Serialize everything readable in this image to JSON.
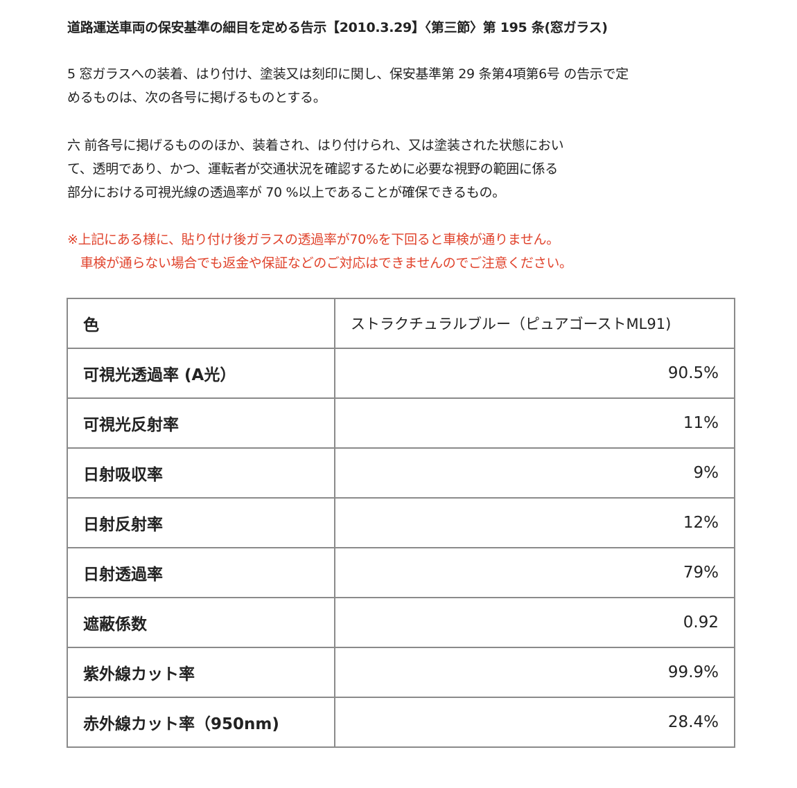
{
  "title": "道路運送車両の保安基準の細目を定める告示【2010.3.29】〈第三節〉第 195 条(窓ガラス)",
  "para1": [
    "5 窓ガラスへの装着、はり付け、塗装又は刻印に関し、保安基準第 29 条第4項第6号 の告示で定",
    "めるものは、次の各号に掲げるものとする。"
  ],
  "para2": [
    "六 前各号に掲げるもののほか、装着され、はり付けられ、又は塗装された状態におい",
    "て、透明であり、かつ、運転者が交通状況を確認するために必要な視野の範囲に係る",
    "部分における可視光線の透過率が 70 %以上であることが確保できるもの。"
  ],
  "note": [
    "※上記にある様に、貼り付け後ガラスの透過率が70%を下回ると車検が通りません。",
    "　車検が通らない場合でも返金や保証などのご対応はできませんのでご注意ください。"
  ],
  "note_color": "#e0432c",
  "table": {
    "header": {
      "label": "色",
      "value": "ストラクチュラルブルー（ピュアゴーストML91)"
    },
    "rows": [
      {
        "label": "可視光透過率 (A光）",
        "value": "90.5%"
      },
      {
        "label": "可視光反射率",
        "value": "11%"
      },
      {
        "label": "日射吸収率",
        "value": "9%"
      },
      {
        "label": "日射反射率",
        "value": "12%"
      },
      {
        "label": "日射透過率",
        "value": "79%"
      },
      {
        "label": "遮蔽係数",
        "value": "0.92"
      },
      {
        "label": "紫外線カット率",
        "value": "99.9%"
      },
      {
        "label": "赤外線カット率（950nm)",
        "value": "28.4%"
      }
    ]
  }
}
